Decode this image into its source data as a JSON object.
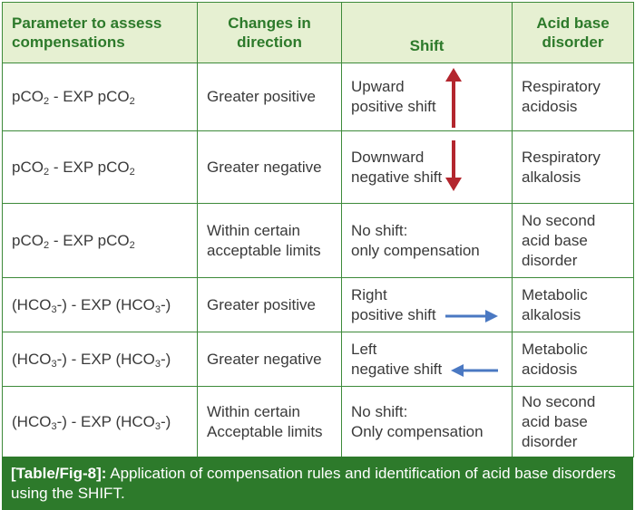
{
  "headers": {
    "param": "Parameter to assess compensations",
    "changes": "Changes in direction",
    "shift": "Shift",
    "disorder": "Acid base disorder"
  },
  "params": {
    "pco2": {
      "a": "pCO",
      "sub": "2",
      "mid": " - EXP pCO",
      "sub2": "2"
    },
    "hco3": {
      "a": "(HCO",
      "sub": "3",
      "mid": "-) - EXP (HCO",
      "sub2": "3",
      "end": "-)"
    }
  },
  "rows": [
    {
      "changes_line1": "Greater positive",
      "changes_line2": "",
      "shift_line1": "Upward",
      "shift_line2": "positive shift",
      "arrow": "up-arrow",
      "disorder_line1": "Respiratory",
      "disorder_line2": "acidosis",
      "disorder_line3": ""
    },
    {
      "changes_line1": "Greater negative",
      "changes_line2": "",
      "shift_line1": "Downward",
      "shift_line2": "negative shift",
      "arrow": "down-arrow",
      "disorder_line1": "Respiratory",
      "disorder_line2": "alkalosis",
      "disorder_line3": ""
    },
    {
      "changes_line1": "Within certain",
      "changes_line2": "acceptable limits",
      "shift_line1": "No shift:",
      "shift_line2": "only compensation",
      "arrow": "",
      "disorder_line1": "No second",
      "disorder_line2": "acid base",
      "disorder_line3": "disorder"
    },
    {
      "changes_line1": "Greater positive",
      "changes_line2": "",
      "shift_line1": "Right",
      "shift_line2": "positive shift",
      "arrow": "right-arrow",
      "disorder_line1": "Metabolic",
      "disorder_line2": "alkalosis",
      "disorder_line3": ""
    },
    {
      "changes_line1": "Greater negative",
      "changes_line2": "",
      "shift_line1": "Left",
      "shift_line2": "negative shift",
      "arrow": "left-arrow",
      "disorder_line1": "Metabolic",
      "disorder_line2": "acidosis",
      "disorder_line3": ""
    },
    {
      "changes_line1": "Within certain",
      "changes_line2": "Acceptable limits",
      "shift_line1": "No shift:",
      "shift_line2": "Only compensation",
      "arrow": "",
      "disorder_line1": "No second",
      "disorder_line2": "acid base",
      "disorder_line3": "disorder"
    }
  ],
  "caption": {
    "label": "[Table/Fig-8]:",
    "text": " Application of compensation rules and identification of acid base disorders using the SHIFT."
  },
  "colors": {
    "border": "#3d8a3a",
    "header_bg": "#e6f0d2",
    "header_text": "#2d7a2b",
    "caption_bg": "#2d7a2b",
    "red_arrow": "#b3262e",
    "blue_arrow": "#4a78c2"
  }
}
